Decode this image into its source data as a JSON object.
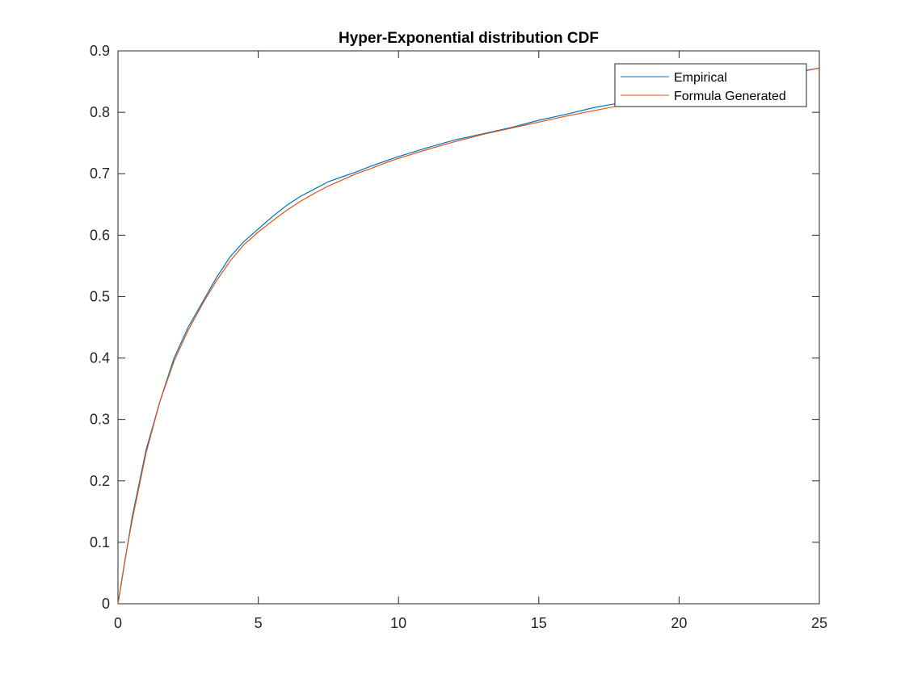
{
  "chart_data": {
    "type": "line",
    "title": "Hyper-Exponential distribution CDF",
    "xlabel": "",
    "ylabel": "",
    "xlim": [
      0,
      25
    ],
    "ylim": [
      0,
      0.9
    ],
    "x_ticks": [
      "0",
      "5",
      "10",
      "15",
      "20",
      "25"
    ],
    "y_ticks": [
      "0",
      "0.1",
      "0.2",
      "0.3",
      "0.4",
      "0.5",
      "0.6",
      "0.7",
      "0.8",
      "0.9"
    ],
    "grid": false,
    "legend_position": "top-right",
    "series": [
      {
        "name": "Empirical",
        "color": "#0072BD",
        "x": [
          0,
          0.25,
          0.5,
          1,
          1.5,
          2,
          2.5,
          3,
          3.5,
          4,
          4.5,
          5,
          5.5,
          6,
          6.5,
          7,
          7.5,
          8,
          8.5,
          9,
          9.5,
          10,
          11,
          12,
          13,
          14,
          15,
          16,
          17,
          18,
          19,
          20,
          21,
          22,
          23,
          24,
          25
        ],
        "y": [
          0,
          0.07,
          0.14,
          0.25,
          0.33,
          0.4,
          0.45,
          0.49,
          0.53,
          0.565,
          0.59,
          0.61,
          0.63,
          0.648,
          0.663,
          0.675,
          0.687,
          0.695,
          0.703,
          0.712,
          0.72,
          0.728,
          0.742,
          0.755,
          0.765,
          0.775,
          0.787,
          0.797,
          0.808,
          0.816,
          0.822,
          0.831,
          0.839,
          0.847,
          0.856,
          0.864,
          0.872
        ]
      },
      {
        "name": "Formula Generated",
        "color": "#D95319",
        "x": [
          0,
          0.25,
          0.5,
          1,
          1.5,
          2,
          2.5,
          3,
          3.5,
          4,
          4.5,
          5,
          5.5,
          6,
          6.5,
          7,
          7.5,
          8,
          8.5,
          9,
          9.5,
          10,
          11,
          12,
          13,
          14,
          15,
          16,
          17,
          18,
          19,
          20,
          21,
          22,
          23,
          24,
          25
        ],
        "y": [
          0,
          0.072,
          0.135,
          0.245,
          0.33,
          0.395,
          0.445,
          0.487,
          0.525,
          0.558,
          0.585,
          0.605,
          0.623,
          0.64,
          0.655,
          0.668,
          0.68,
          0.69,
          0.7,
          0.708,
          0.717,
          0.725,
          0.739,
          0.752,
          0.764,
          0.774,
          0.784,
          0.794,
          0.803,
          0.812,
          0.821,
          0.83,
          0.838,
          0.846,
          0.855,
          0.863,
          0.872
        ]
      }
    ]
  }
}
